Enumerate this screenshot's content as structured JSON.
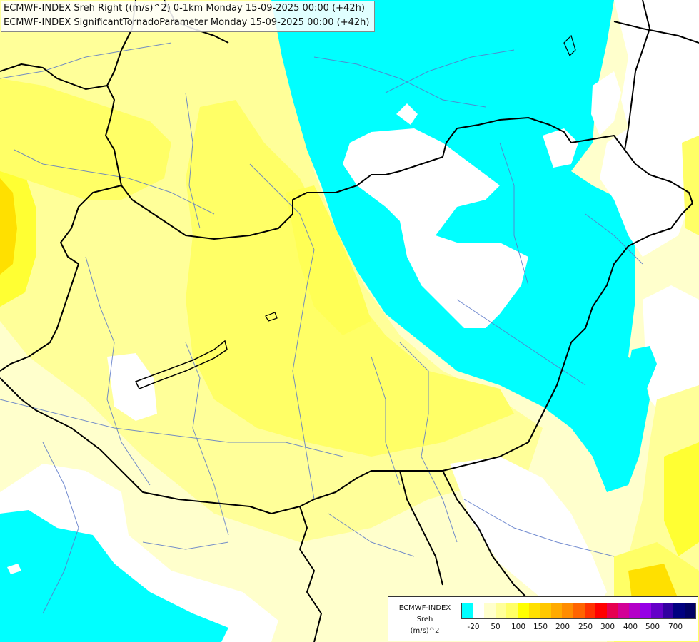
{
  "header": {
    "line1": "ECMWF-INDEX Sreh Right ((m/s)^2) 0-1km Monday 15-09-2025 00:00 (+42h)",
    "line2": "ECMWF-INDEX SignificantTornadoParameter Monday 15-09-2025 00:00 (+42h)"
  },
  "legend": {
    "title": "ECMWF-INDEX",
    "field": "Sreh",
    "unit": "(m/s)^2",
    "colors": [
      "#00ffff",
      "#ffffff",
      "#ffffcc",
      "#ffff99",
      "#ffff66",
      "#ffff00",
      "#ffe000",
      "#ffc800",
      "#ffaa00",
      "#ff8c00",
      "#ff6400",
      "#ff3200",
      "#ff0000",
      "#e60050",
      "#d20096",
      "#b400c8",
      "#9600e6",
      "#6400c8",
      "#3200a0",
      "#000080",
      "#000064"
    ],
    "ticks": [
      "-20",
      "50",
      "100",
      "150",
      "200",
      "250",
      "300",
      "400",
      "500",
      "700"
    ]
  }
}
